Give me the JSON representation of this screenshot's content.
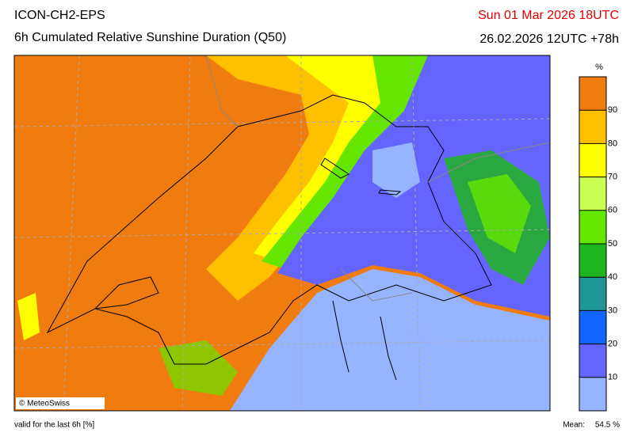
{
  "header": {
    "model": "ICON-CH2-EPS",
    "product": "6h Cumulated Relative Sunshine Duration (Q50)",
    "valid_time": "Sun 01 Mar 2026 18UTC",
    "run": "26.02.2026 12UTC +78h"
  },
  "map": {
    "credit": "© MeteoSwiss"
  },
  "colorbar": {
    "unit": "%",
    "levels": [
      0,
      10,
      20,
      30,
      40,
      50,
      60,
      70,
      80,
      90,
      100
    ],
    "colors": [
      "#96b4ff",
      "#6464ff",
      "#1464ff",
      "#1e9696",
      "#1eb41e",
      "#64e600",
      "#c8ff50",
      "#ffff00",
      "#ffc000",
      "#f07c10"
    ],
    "ticks": [
      10,
      20,
      30,
      40,
      50,
      60,
      70,
      80,
      90
    ]
  },
  "footer": {
    "note": "valid for the last 6h [%]",
    "mean_label": "Mean:",
    "mean": "54.5 %"
  }
}
